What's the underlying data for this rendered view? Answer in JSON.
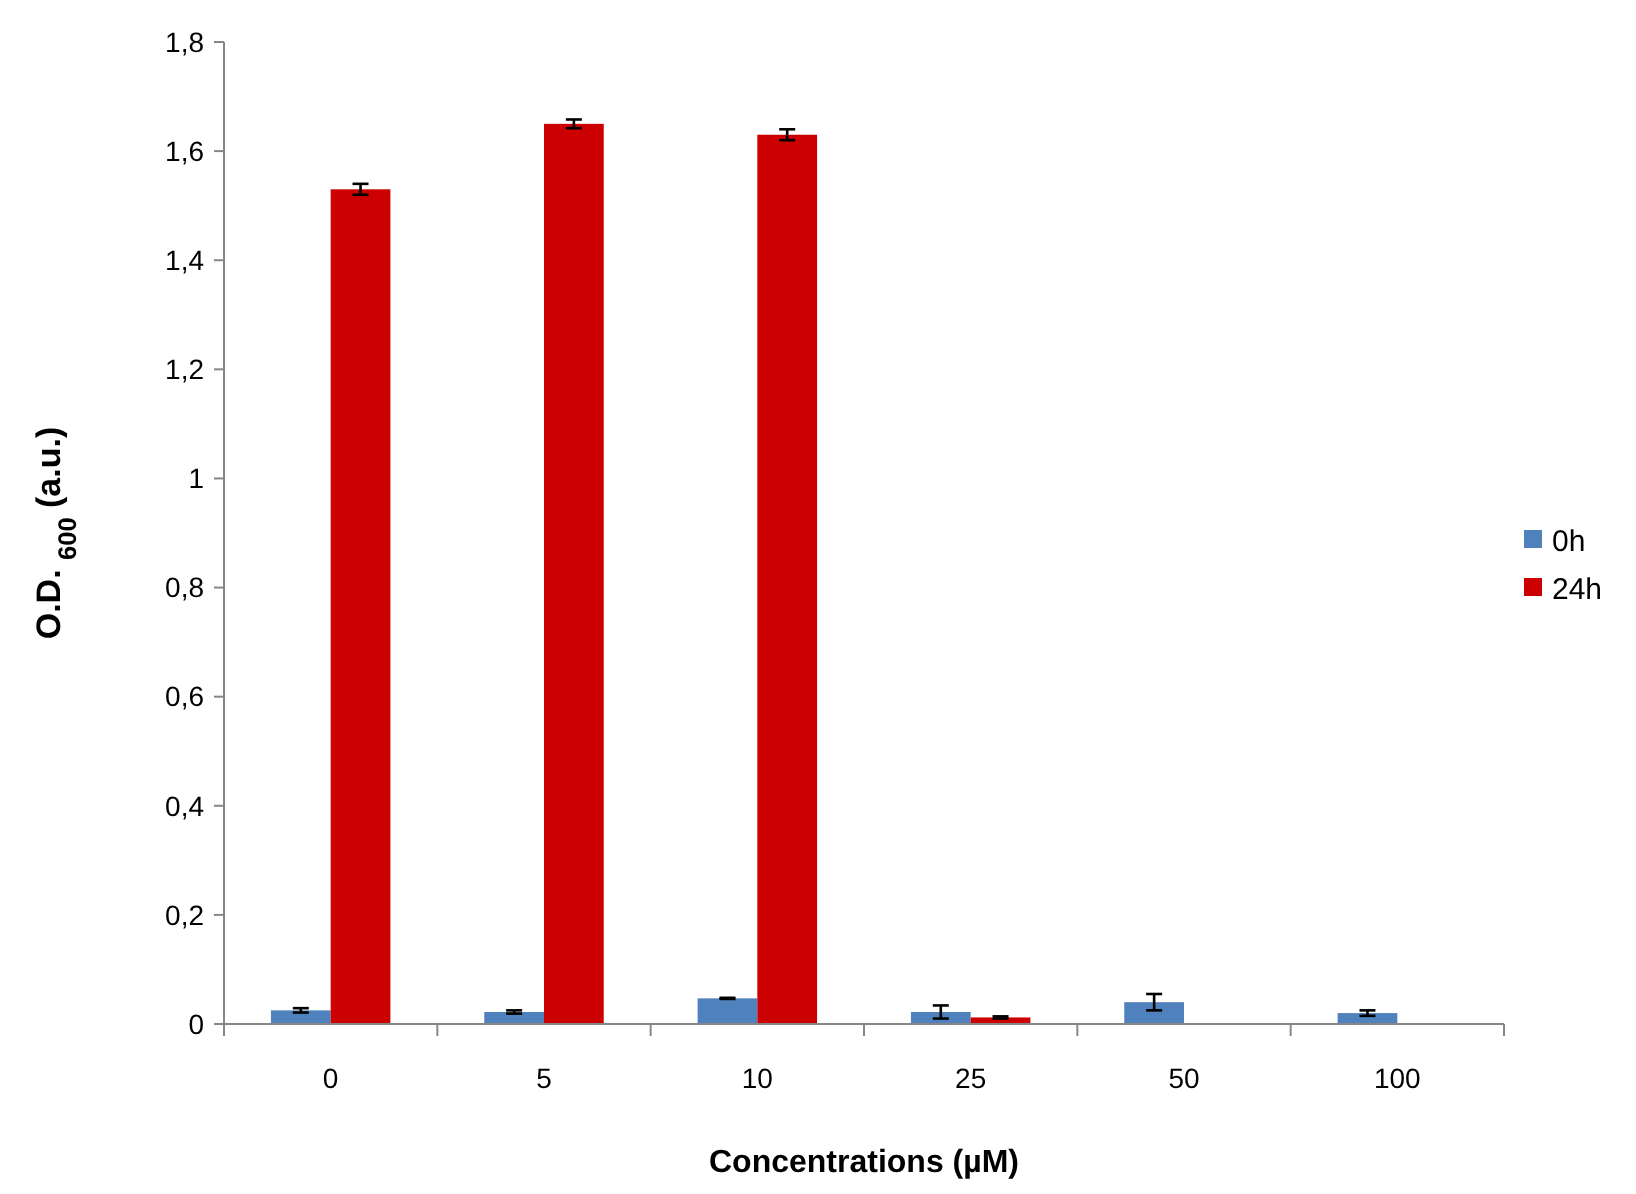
{
  "chart_data": {
    "type": "bar",
    "xlabel": "Concentrations (µM)",
    "ylabel": "O.D. $_{600}$ (a.u.)",
    "categories": [
      "0",
      "5",
      "10",
      "25",
      "50",
      "100"
    ],
    "series": [
      {
        "name": "0h",
        "color": "#4f81bd",
        "values": [
          0.025,
          0.022,
          0.047,
          0.022,
          0.04,
          0.02
        ],
        "errors": [
          0.004,
          0.003,
          0.001,
          0.012,
          0.015,
          0.005
        ]
      },
      {
        "name": "24h",
        "color": "#cc0000",
        "values": [
          1.53,
          1.65,
          1.63,
          0.012,
          0,
          0
        ],
        "errors": [
          0.01,
          0.008,
          0.01,
          0.002,
          null,
          null
        ]
      }
    ],
    "ylim": [
      0,
      1.8
    ],
    "yticks": [
      0,
      {
        "value": 0.2,
        "label": "0,2"
      },
      {
        "value": 0.4,
        "label": "0,4"
      },
      {
        "value": 0.6,
        "label": "0,6"
      },
      {
        "value": 0.8,
        "label": "0,8"
      },
      1,
      {
        "value": 1.2,
        "label": "1,2"
      },
      {
        "value": 1.4,
        "label": "1,4"
      },
      {
        "value": 1.6,
        "label": "1,6"
      },
      {
        "value": 1.8,
        "label": "1,8"
      }
    ],
    "grid": false,
    "legend": "right"
  }
}
